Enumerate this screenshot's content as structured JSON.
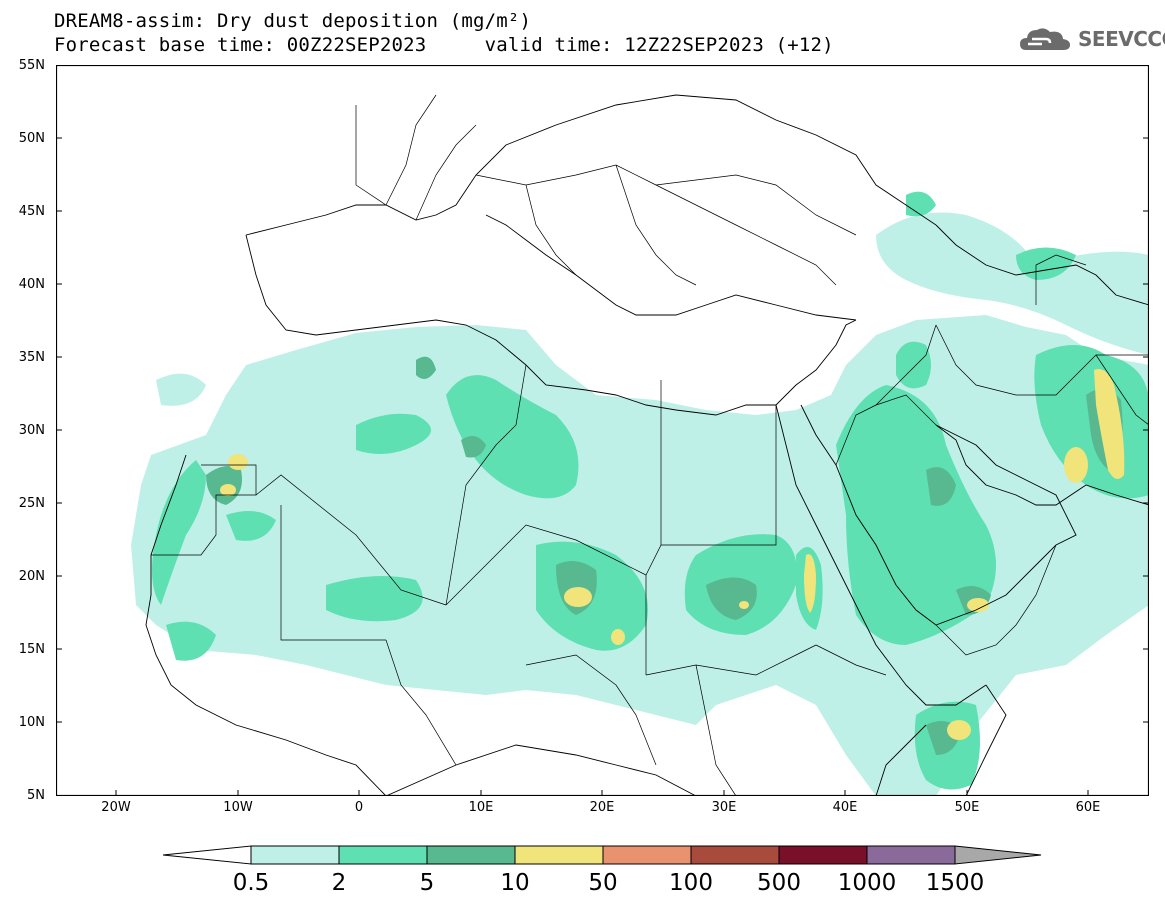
{
  "header": {
    "line1": "DREAM8-assim: Dry dust deposition (mg/m²)",
    "line2": "Forecast base time: 00Z22SEP2023     valid time: 12Z22SEP2023 (+12)"
  },
  "logo": {
    "text": "SEEVCCC",
    "icon": "cloud-icon"
  },
  "map": {
    "lat_labels": [
      "55N",
      "50N",
      "45N",
      "40N",
      "35N",
      "30N",
      "25N",
      "20N",
      "15N",
      "10N",
      "5N"
    ],
    "lon_labels": [
      "20W",
      "10W",
      "0",
      "10E",
      "20E",
      "30E",
      "40E",
      "50E",
      "60E"
    ],
    "extent": {
      "lon_min": -25,
      "lon_max": 65,
      "lat_min": 5,
      "lat_max": 55
    }
  },
  "legend": {
    "labels": [
      "0.5",
      "2",
      "5",
      "10",
      "50",
      "100",
      "500",
      "1000",
      "1500"
    ],
    "colors": [
      "#bff0e8",
      "#5ee0b3",
      "#58b890",
      "#f0e47a",
      "#e89270",
      "#a84a3c",
      "#7a0f2a",
      "#8a6a9a",
      "#a8a8a8"
    ]
  }
}
